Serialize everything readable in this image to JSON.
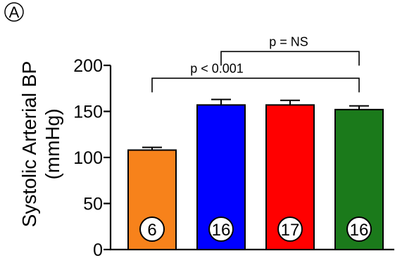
{
  "panel_label": "A",
  "chart_data": {
    "type": "bar",
    "title": "",
    "xlabel": "",
    "ylabel_lines": [
      "Systolic Arterial BP",
      "(mmHg)"
    ],
    "ylim": [
      0,
      200
    ],
    "yticks": [
      0,
      50,
      100,
      150,
      200
    ],
    "ytick_labels": [
      "0",
      "50",
      "100",
      "150",
      "200"
    ],
    "grid": false,
    "categories": [
      "",
      "",
      "",
      ""
    ],
    "values": [
      108,
      157,
      157,
      152
    ],
    "errors": [
      3,
      6,
      5,
      4
    ],
    "colors": [
      "#f7821b",
      "#0000ff",
      "#ff0000",
      "#1b7a1b"
    ],
    "n_labels": [
      "6",
      "16",
      "17",
      "16"
    ],
    "annotations": [
      {
        "text": "p = NS",
        "from": 1,
        "to": 3,
        "level": 215
      },
      {
        "text": "p < 0.001",
        "from": 0,
        "to": 3,
        "level": 186
      }
    ]
  }
}
